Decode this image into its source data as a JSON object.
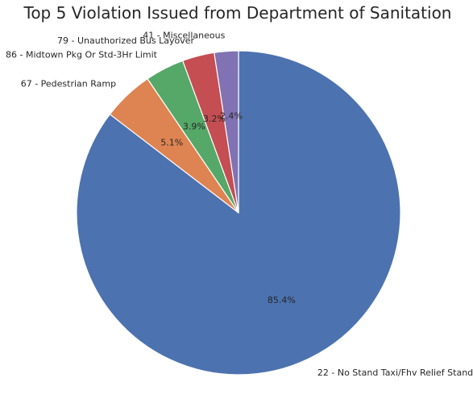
{
  "chart_data": {
    "type": "pie",
    "title": "Top 5 Violation Issued from Department of Sanitation",
    "start_angle_deg": 90,
    "direction": "clockwise",
    "slices": [
      {
        "label": "22 - No Stand Taxi/Fhv Relief Stand",
        "value": 85.4,
        "pct_label": "85.4%",
        "color": "#4c72b0"
      },
      {
        "label": "67 - Pedestrian Ramp",
        "value": 5.1,
        "pct_label": "5.1%",
        "color": "#dd8452"
      },
      {
        "label": "86 - Midtown Pkg Or Std-3Hr Limit",
        "value": 3.9,
        "pct_label": "3.9%",
        "color": "#55a868"
      },
      {
        "label": "79 - Unauthorized Bus Layover",
        "value": 3.2,
        "pct_label": "3.2%",
        "color": "#c44e52"
      },
      {
        "label": "41 - Miscellaneous",
        "value": 2.4,
        "pct_label": "2.4%",
        "color": "#8172b3"
      }
    ],
    "wedge_edge_color": "#ffffff"
  }
}
